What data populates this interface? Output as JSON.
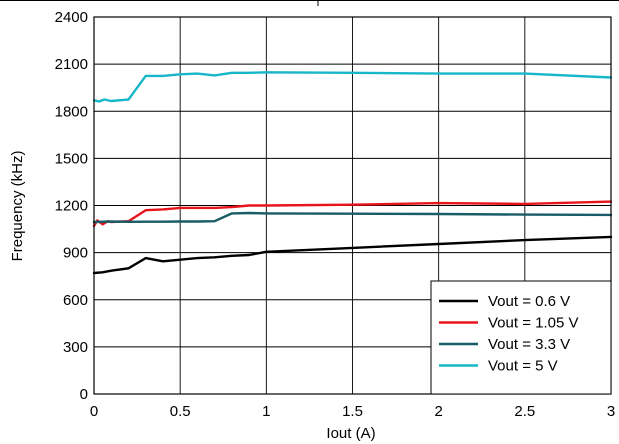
{
  "chart_data": {
    "type": "line",
    "title": "",
    "xlabel": "Iout (A)",
    "ylabel": "Frequency (kHz)",
    "xlim": [
      0,
      3
    ],
    "ylim": [
      0,
      2400
    ],
    "x_ticks": [
      "0",
      "0.5",
      "1",
      "1.5",
      "2",
      "2.5",
      "3"
    ],
    "y_ticks": [
      "0",
      "300",
      "600",
      "900",
      "1200",
      "1500",
      "1800",
      "2100",
      "2400"
    ],
    "x_tick_values": [
      0,
      0.5,
      1,
      1.5,
      2,
      2.5,
      3
    ],
    "y_tick_values": [
      0,
      300,
      600,
      900,
      1200,
      1500,
      1800,
      2100,
      2400
    ],
    "grid": true,
    "legend_position": "bottom-right",
    "series": [
      {
        "name": "Vout = 0.6 V",
        "color": "#000000",
        "x": [
          0,
          0.05,
          0.1,
          0.2,
          0.3,
          0.4,
          0.5,
          0.6,
          0.7,
          0.8,
          0.9,
          1.0,
          1.5,
          2.0,
          2.5,
          3.0
        ],
        "y": [
          770,
          775,
          785,
          800,
          865,
          845,
          855,
          865,
          870,
          880,
          885,
          905,
          930,
          955,
          980,
          1000
        ]
      },
      {
        "name": "Vout = 1.05 V",
        "color": "#e8141c",
        "x": [
          0,
          0.02,
          0.05,
          0.08,
          0.1,
          0.2,
          0.3,
          0.4,
          0.5,
          0.6,
          0.7,
          0.8,
          0.9,
          1.0,
          1.5,
          2.0,
          2.5,
          3.0
        ],
        "y": [
          1070,
          1105,
          1080,
          1100,
          1095,
          1100,
          1170,
          1175,
          1185,
          1185,
          1185,
          1190,
          1200,
          1200,
          1205,
          1215,
          1210,
          1225
        ]
      },
      {
        "name": "Vout = 3.3 V",
        "color": "#175c66",
        "x": [
          0,
          0.1,
          0.2,
          0.3,
          0.4,
          0.5,
          0.6,
          0.7,
          0.8,
          0.9,
          1.0,
          1.5,
          2.0,
          2.5,
          3.0
        ],
        "y": [
          1095,
          1098,
          1096,
          1097,
          1097,
          1098,
          1098,
          1100,
          1150,
          1152,
          1150,
          1148,
          1146,
          1142,
          1140
        ]
      },
      {
        "name": "Vout = 5 V",
        "color": "#17b7c9",
        "x": [
          0,
          0.03,
          0.06,
          0.1,
          0.2,
          0.3,
          0.4,
          0.5,
          0.6,
          0.7,
          0.8,
          0.9,
          1.0,
          1.5,
          2.0,
          2.5,
          3.0
        ],
        "y": [
          1870,
          1862,
          1875,
          1865,
          1875,
          2025,
          2025,
          2035,
          2040,
          2028,
          2045,
          2045,
          2048,
          2045,
          2040,
          2040,
          2015
        ]
      }
    ]
  }
}
